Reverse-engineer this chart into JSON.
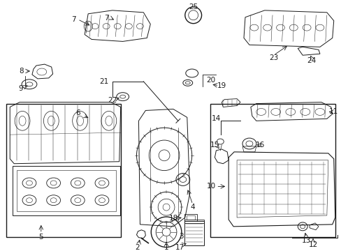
{
  "bg_color": "#ffffff",
  "line_color": "#1a1a1a",
  "fig_width": 4.89,
  "fig_height": 3.6,
  "dpi": 100,
  "image_data": null
}
